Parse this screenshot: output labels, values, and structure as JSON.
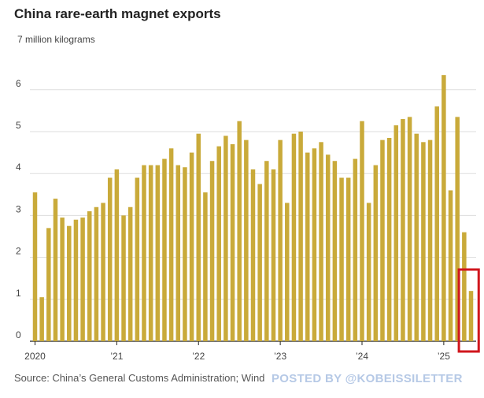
{
  "title": "China rare-earth magnet exports",
  "unit_label": "7 million kilograms",
  "source": "Source: China’s General Customs Administration; Wind",
  "watermark": "POSTED BY @KOBEISSILETTER",
  "colors": {
    "bar": "#c9aa3a",
    "grid": "#dddddd",
    "axis": "#222222",
    "highlight": "#d0161d"
  },
  "chart_data": {
    "type": "bar",
    "title": "China rare-earth magnet exports",
    "ylabel": "7 million kilograms",
    "xlabel": "",
    "ylim": [
      0,
      7
    ],
    "yticks": [
      0,
      1,
      2,
      3,
      4,
      5,
      6
    ],
    "xtick_labels": [
      {
        "label": "2020",
        "index": 0
      },
      {
        "label": "’21",
        "index": 12
      },
      {
        "label": "’22",
        "index": 24
      },
      {
        "label": "’23",
        "index": 36
      },
      {
        "label": "’24",
        "index": 48
      },
      {
        "label": "’25",
        "index": 60
      }
    ],
    "grid": true,
    "values": [
      3.55,
      1.05,
      2.7,
      3.4,
      2.95,
      2.75,
      2.9,
      2.95,
      3.1,
      3.2,
      3.3,
      3.9,
      4.1,
      3.0,
      3.2,
      3.9,
      4.2,
      4.2,
      4.2,
      4.35,
      4.6,
      4.2,
      4.15,
      4.5,
      4.95,
      3.55,
      4.3,
      4.65,
      4.9,
      4.7,
      5.25,
      4.8,
      4.1,
      3.75,
      4.3,
      4.1,
      4.8,
      3.3,
      4.95,
      5.0,
      4.5,
      4.6,
      4.75,
      4.45,
      4.3,
      3.9,
      3.9,
      4.35,
      5.25,
      3.3,
      4.2,
      4.8,
      4.85,
      5.15,
      5.3,
      5.35,
      4.95,
      4.75,
      4.8,
      5.6,
      6.35,
      3.6,
      5.35,
      2.6,
      1.2
    ],
    "highlight": {
      "from_index": 63,
      "to_index": 64
    }
  }
}
